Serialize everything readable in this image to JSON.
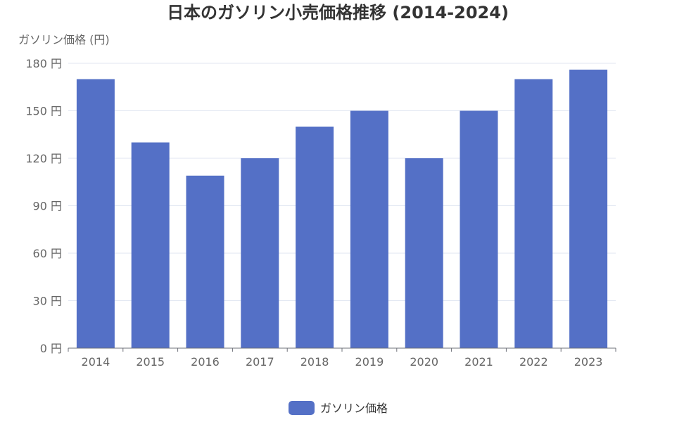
{
  "chart_data": {
    "type": "bar",
    "title": "日本のガソリン小売価格推移 (2014-2024)",
    "ylabel": "ガソリン価格 (円)",
    "xlabel": "",
    "y_tick_labels": [
      "0 円",
      "30 円",
      "60 円",
      "90 円",
      "120 円",
      "150 円",
      "180 円"
    ],
    "y_ticks": [
      0,
      30,
      60,
      90,
      120,
      150,
      180
    ],
    "ylim": [
      0,
      180
    ],
    "categories": [
      "2014",
      "2015",
      "2016",
      "2017",
      "2018",
      "2019",
      "2020",
      "2021",
      "2022",
      "2023"
    ],
    "series": [
      {
        "name": "ガソリン価格",
        "values": [
          170,
          130,
          109,
          120,
          140,
          150,
          120,
          150,
          170,
          176
        ],
        "color": "#5470c6"
      }
    ],
    "grid": true,
    "legend_position": "bottom-center"
  }
}
